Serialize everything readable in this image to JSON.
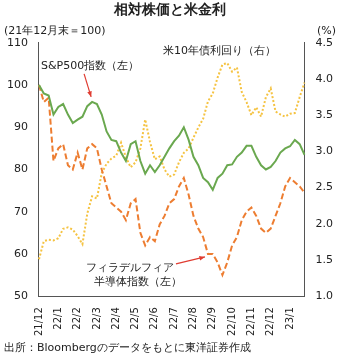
{
  "chart_data": {
    "type": "line",
    "title": "相対株価と米金利",
    "y_label": "(21年12月末＝100)",
    "y2_label": "(%)",
    "source": "出所：Bloombergのデータをもとに東洋証券作成",
    "categories": [
      "21/12",
      null,
      null,
      null,
      "22/1",
      null,
      null,
      null,
      "22/2",
      null,
      null,
      null,
      "22/3",
      null,
      null,
      null,
      "22/4",
      null,
      null,
      null,
      "22/5",
      null,
      null,
      null,
      "22/6",
      null,
      null,
      null,
      "22/7",
      null,
      null,
      null,
      "22/8",
      null,
      null,
      null,
      "22/9",
      null,
      null,
      null,
      "22/10",
      null,
      null,
      null,
      "22/11",
      null,
      null,
      null,
      "22/12",
      null,
      null,
      null,
      "23/1",
      null,
      null,
      null
    ],
    "series": [
      {
        "name": "S&P500指数（左）",
        "color": "#6aa84f",
        "line_style": "solid",
        "values": [
          100,
          98,
          97.5,
          93,
          94.8,
          95.5,
          93,
          91,
          91.8,
          92.5,
          95,
          96,
          95.5,
          93,
          89,
          87,
          86.7,
          84,
          82,
          86,
          86.7,
          82,
          79,
          81,
          79.4,
          81,
          83,
          85,
          86.7,
          88,
          90,
          87,
          83,
          81,
          78,
          77,
          75.2,
          78,
          79,
          81,
          81.2,
          83,
          84,
          85.6,
          85.6,
          83,
          81,
          80,
          80.6,
          82,
          84,
          85,
          85.5,
          87,
          86,
          83.5
        ]
      },
      {
        "name": "フィラデルフィア\n半導体指数（左）",
        "color": "#ed7d31",
        "line_style": "dashed",
        "values": [
          100,
          96,
          97,
          82,
          85,
          86,
          81,
          80,
          84,
          80,
          85,
          86,
          85,
          80,
          76,
          72,
          71,
          70,
          68,
          72,
          73,
          65,
          62,
          64,
          63,
          67,
          69,
          72,
          73,
          76,
          78,
          74,
          69,
          66,
          64,
          60,
          60,
          58,
          55,
          58,
          62,
          64,
          68,
          70,
          71,
          69,
          66,
          65,
          66,
          69,
          72,
          76,
          78,
          77,
          76,
          74.5
        ]
      },
      {
        "name": "米10年債利回り（右）",
        "color": "#f5c342",
        "line_style": "dotted",
        "axis": "y2",
        "values": [
          1.51,
          1.76,
          1.78,
          1.77,
          1.8,
          1.93,
          1.95,
          1.92,
          1.83,
          1.72,
          2.14,
          2.38,
          2.35,
          2.7,
          2.83,
          2.9,
          2.94,
          3.12,
          2.92,
          2.78,
          2.85,
          3.04,
          3.44,
          3.13,
          2.89,
          2.93,
          2.75,
          2.65,
          2.68,
          2.85,
          2.98,
          3.04,
          3.19,
          3.33,
          3.45,
          3.69,
          3.8,
          4.02,
          4.2,
          4.22,
          4.1,
          4.16,
          3.82,
          3.68,
          3.5,
          3.61,
          3.48,
          3.75,
          3.87,
          3.55,
          3.51,
          3.48,
          3.52,
          3.53,
          3.75,
          3.95
        ]
      }
    ],
    "ylim": [
      50,
      110
    ],
    "yticks": [
      50,
      60,
      70,
      80,
      90,
      100,
      110
    ],
    "y2lim": [
      1,
      4.5
    ],
    "y2ticks": [
      {
        "value": 1,
        "label": "1.0"
      },
      1.5,
      {
        "value": 2,
        "label": "2.0"
      },
      2.5,
      {
        "value": 3,
        "label": "3.0"
      },
      3.5,
      {
        "value": 4,
        "label": "4.0"
      },
      4.5
    ],
    "grid": false
  }
}
